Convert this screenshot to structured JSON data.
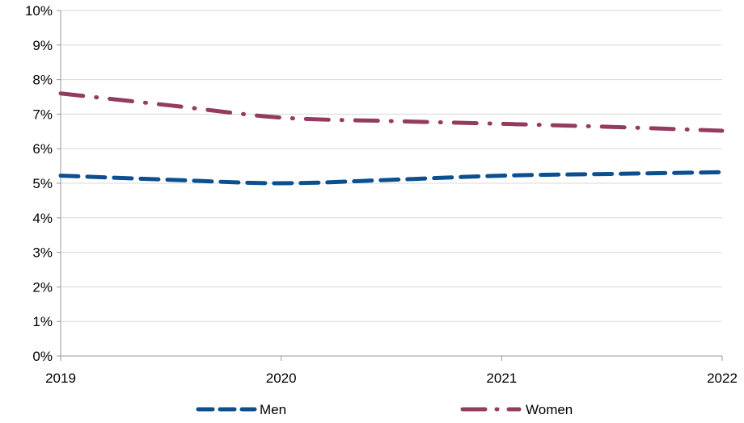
{
  "chart_data": {
    "type": "line",
    "title": "",
    "xlabel": "",
    "ylabel": "",
    "x": [
      2019,
      2020,
      2021,
      2022
    ],
    "x_tick_labels": [
      "2019",
      "2020",
      "2021",
      "2022"
    ],
    "ylim": [
      0,
      10
    ],
    "y_ticks": [
      0,
      1,
      2,
      3,
      4,
      5,
      6,
      7,
      8,
      9,
      10
    ],
    "y_tick_labels": [
      "0%",
      "1%",
      "2%",
      "3%",
      "4%",
      "5%",
      "6%",
      "7%",
      "8%",
      "9%",
      "10%"
    ],
    "grid": "horizontal",
    "legend_position": "bottom",
    "series": [
      {
        "name": "Men",
        "color": "#0b4f8f",
        "style": "dashed",
        "x": [
          2019,
          2019.5,
          2020,
          2020.5,
          2021,
          2021.5,
          2022
        ],
        "values": [
          5.22,
          5.1,
          5.0,
          5.1,
          5.22,
          5.27,
          5.32
        ]
      },
      {
        "name": "Women",
        "color": "#933c5f",
        "style": "dash-dot",
        "x": [
          2019,
          2019.5,
          2020,
          2020.5,
          2021,
          2021.5,
          2022
        ],
        "values": [
          7.6,
          7.25,
          6.9,
          6.8,
          6.72,
          6.63,
          6.52
        ]
      }
    ]
  }
}
